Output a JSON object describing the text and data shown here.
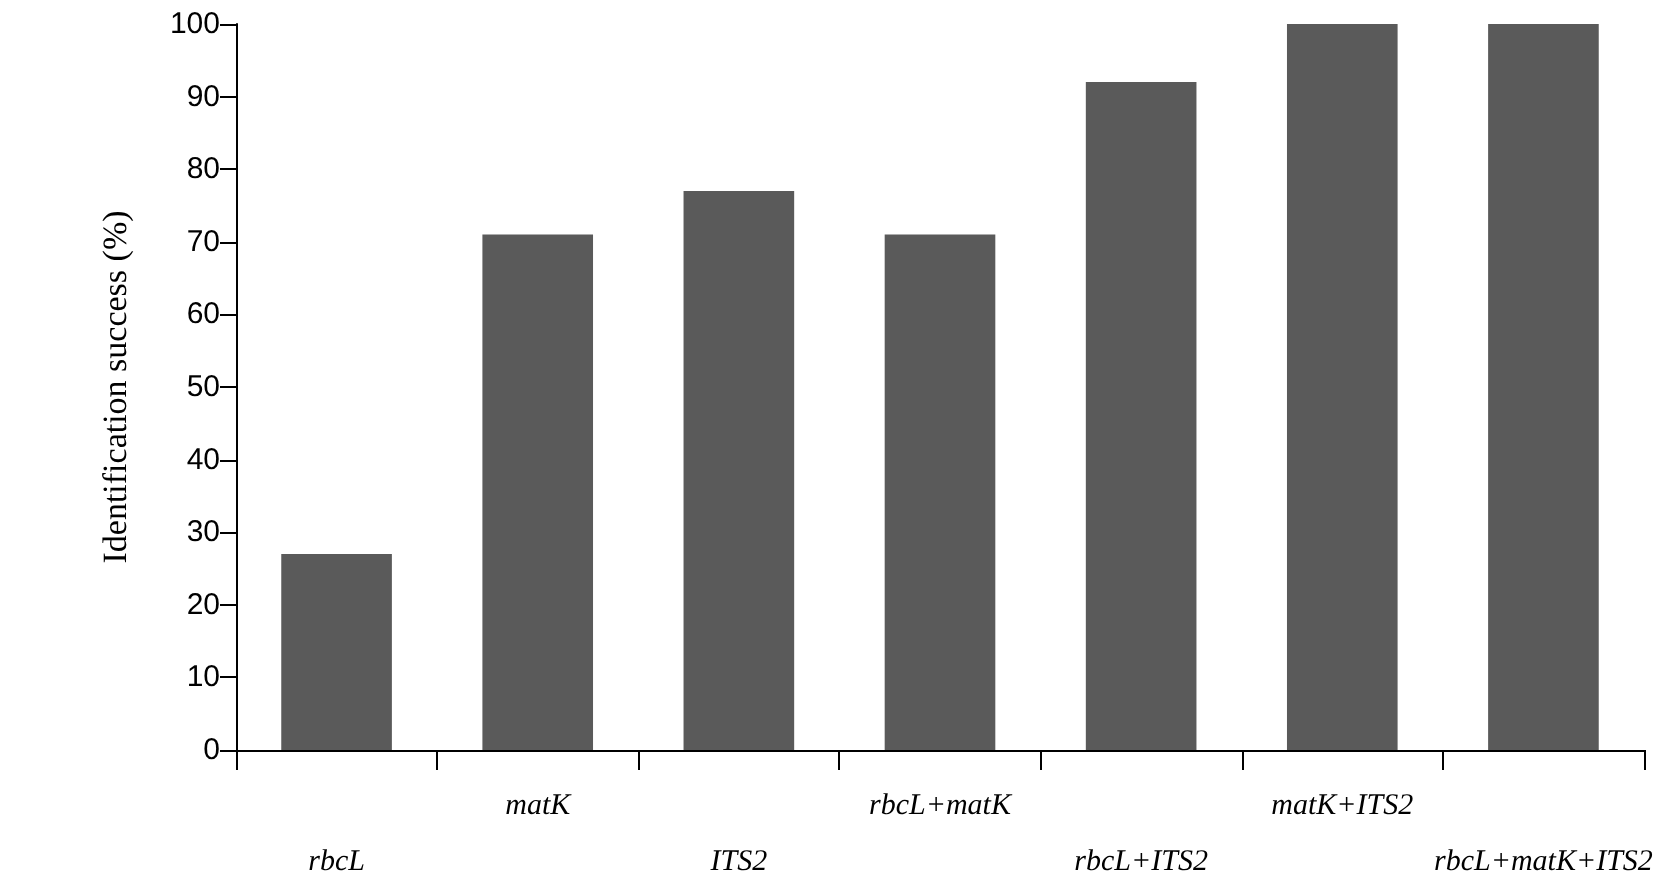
{
  "chart_data": {
    "type": "bar",
    "ylabel": "Identification success (%)",
    "categories": [
      "rbcL",
      "matK",
      "ITS2",
      "rbcL+matK",
      "rbcL+ITS2",
      "matK+ITS2",
      "rbcL+matK+ITS2"
    ],
    "values": [
      27,
      71,
      77,
      71,
      92,
      100,
      100
    ],
    "color": "#5a5a5a",
    "ylim": [
      0,
      100
    ],
    "yticks": [
      0,
      10,
      20,
      30,
      40,
      50,
      60,
      70,
      80,
      90,
      100
    ],
    "grid": false
  }
}
